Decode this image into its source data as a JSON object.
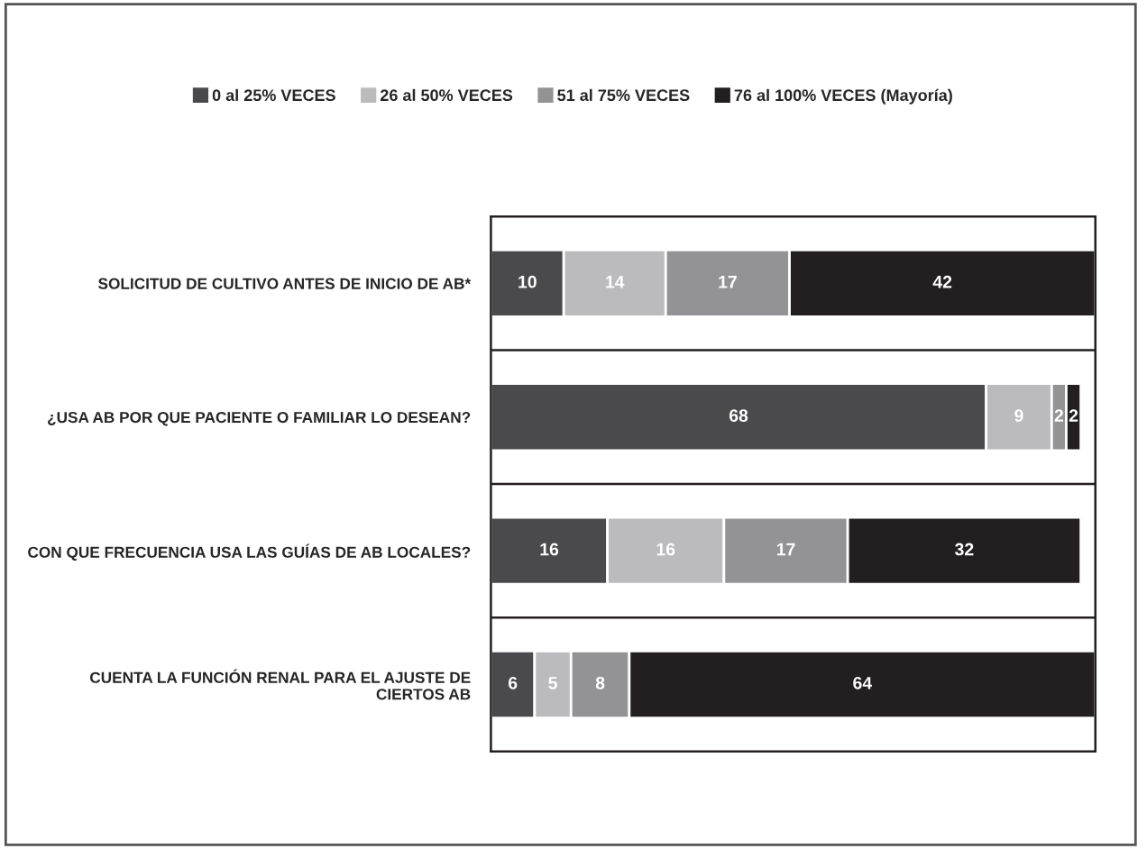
{
  "chart_data": {
    "type": "bar",
    "orientation": "horizontal",
    "stacked": true,
    "data_labels": true,
    "legend": "top",
    "grid": true,
    "tick_labels": "y",
    "categories": [
      "SOLICITUD DE CULTIVO ANTES DE INICIO DE AB*",
      "¿USA AB POR QUE PACIENTE O FAMILIAR LO DESEAN?",
      "CON QUE FRECUENCIA USA LAS GUÍAS DE AB LOCALES?",
      "CUENTA LA FUNCIÓN RENAL PARA EL AJUSTE DE\nCIERTOS AB"
    ],
    "series": [
      {
        "name": "0 al 25% VECES",
        "color": "#4a4a4c",
        "values": [
          10,
          68,
          16,
          6
        ]
      },
      {
        "name": "26 al 50% VECES",
        "color": "#bbbbbe",
        "values": [
          14,
          9,
          16,
          5
        ]
      },
      {
        "name": "51 al 75% VECES",
        "color": "#939396",
        "values": [
          17,
          2,
          17,
          8
        ]
      },
      {
        "name": "76 al 100% VECES (Mayoría)",
        "color": "#231f20",
        "values": [
          42,
          2,
          32,
          64
        ]
      }
    ]
  }
}
